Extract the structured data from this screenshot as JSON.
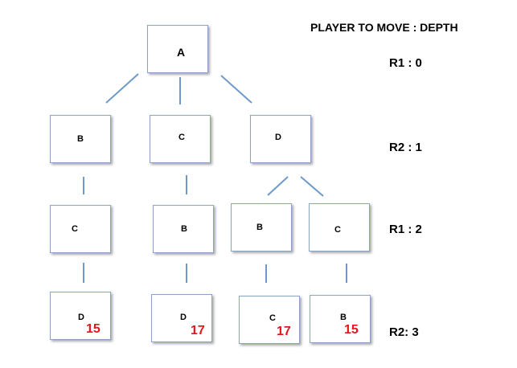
{
  "header": "PLAYER TO MOVE : DEPTH",
  "levels": [
    "R1 : 0",
    "R2 : 1",
    "R1 : 2",
    "R2:  3"
  ],
  "colors": {
    "edge": "#6f9ac7",
    "border": "#8aa4c4",
    "value": "#e8141c"
  },
  "nodes": [
    {
      "id": "n0",
      "label": "A"
    },
    {
      "id": "n1",
      "label": "B"
    },
    {
      "id": "n2",
      "label": "C"
    },
    {
      "id": "n3",
      "label": "D"
    },
    {
      "id": "n4",
      "label": "C"
    },
    {
      "id": "n5",
      "label": "B"
    },
    {
      "id": "n6",
      "label": "B"
    },
    {
      "id": "n7",
      "label": "C"
    },
    {
      "id": "n8",
      "label": "D",
      "value": "15"
    },
    {
      "id": "n9",
      "label": "D",
      "value": "17"
    },
    {
      "id": "n10",
      "label": "C",
      "value": "17"
    },
    {
      "id": "n11",
      "label": "B",
      "value": "15"
    }
  ],
  "edges": [
    [
      "n0",
      "n1"
    ],
    [
      "n0",
      "n2"
    ],
    [
      "n0",
      "n3"
    ],
    [
      "n1",
      "n4"
    ],
    [
      "n2",
      "n5"
    ],
    [
      "n3",
      "n6"
    ],
    [
      "n3",
      "n7"
    ],
    [
      "n4",
      "n8"
    ],
    [
      "n5",
      "n9"
    ],
    [
      "n6",
      "n10"
    ],
    [
      "n7",
      "n11"
    ]
  ]
}
